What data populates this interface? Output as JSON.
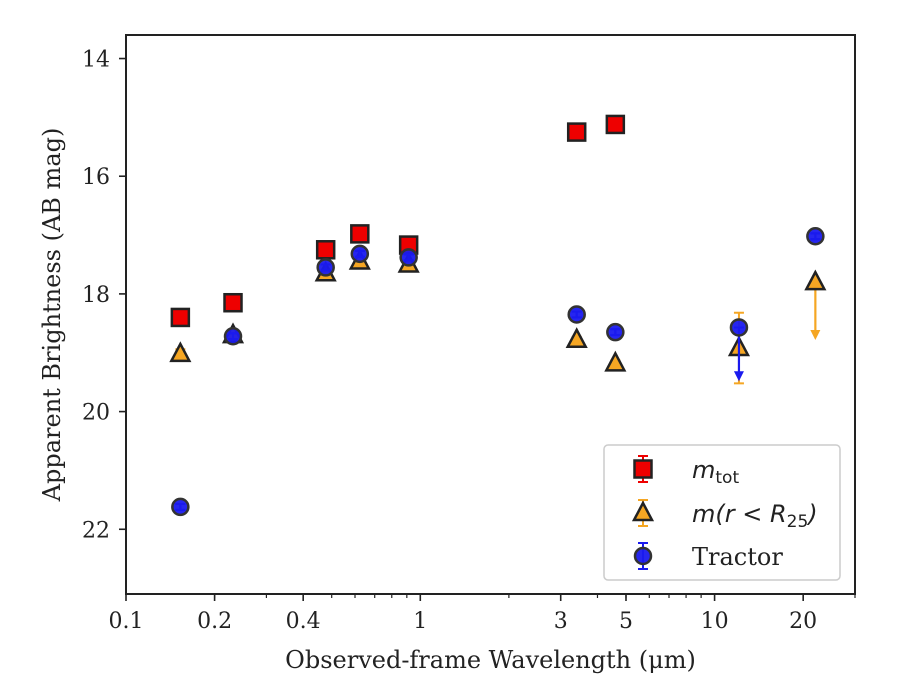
{
  "chart_data": {
    "type": "scatter",
    "xlabel": "Observed-frame Wavelength (μm)",
    "ylabel": "Apparent Brightness (AB mag)",
    "xscale": "log",
    "xlim": [
      0.1,
      30
    ],
    "ylim": [
      23.1,
      13.6
    ],
    "y_inverted": true,
    "xticks": [
      {
        "value": 0.1,
        "label": "0.1"
      },
      {
        "value": 0.2,
        "label": "0.2"
      },
      {
        "value": 0.4,
        "label": "0.4"
      },
      {
        "value": 1,
        "label": "1"
      },
      {
        "value": 3,
        "label": "3"
      },
      {
        "value": 5,
        "label": "5"
      },
      {
        "value": 10,
        "label": "10"
      },
      {
        "value": 20,
        "label": "20"
      }
    ],
    "yticks": [
      {
        "value": 14,
        "label": "14"
      },
      {
        "value": 16,
        "label": "16"
      },
      {
        "value": 18,
        "label": "18"
      },
      {
        "value": 20,
        "label": "20"
      },
      {
        "value": 22,
        "label": "22"
      }
    ],
    "grid": false,
    "legend_position": "lower-right",
    "series": [
      {
        "key": "mtot",
        "legend_main": "m",
        "legend_sub": "tot",
        "marker": "square",
        "color": "#ee0000",
        "errcolor": "#ee0000",
        "points": [
          {
            "x": 0.153,
            "y": 18.4,
            "err": 0.05
          },
          {
            "x": 0.231,
            "y": 18.15,
            "err": 0.05
          },
          {
            "x": 0.477,
            "y": 17.25,
            "err": 0.05
          },
          {
            "x": 0.623,
            "y": 16.98,
            "err": 0.05
          },
          {
            "x": 0.913,
            "y": 17.17,
            "err": 0.05
          },
          {
            "x": 3.4,
            "y": 15.25,
            "err": 0.05
          },
          {
            "x": 4.6,
            "y": 15.12,
            "err": 0.05
          }
        ]
      },
      {
        "key": "mr25",
        "legend_main": "m(r < R",
        "legend_sub": "25",
        "legend_tail": ")",
        "marker": "triangle",
        "color": "#f5a623",
        "errcolor": "#f5a623",
        "points": [
          {
            "x": 0.153,
            "y": 19.02,
            "err": 0.08
          },
          {
            "x": 0.231,
            "y": 18.7,
            "err": 0.05
          },
          {
            "x": 0.477,
            "y": 17.65,
            "err": 0.05
          },
          {
            "x": 0.623,
            "y": 17.45,
            "err": 0.05
          },
          {
            "x": 0.913,
            "y": 17.5,
            "err": 0.05
          },
          {
            "x": 3.4,
            "y": 18.78,
            "err": 0.05
          },
          {
            "x": 4.6,
            "y": 19.18,
            "err": 0.05
          },
          {
            "x": 12.1,
            "y": 18.92,
            "err": 0.6
          },
          {
            "x": 22.0,
            "y": 17.8,
            "upper_limit": true,
            "arrow_to": 18.75
          }
        ]
      },
      {
        "key": "tractor",
        "legend_main": "Tractor",
        "marker": "circle",
        "color": "#1a1aee",
        "errcolor": "#1a1aee",
        "points": [
          {
            "x": 0.153,
            "y": 21.62,
            "err": 0.05
          },
          {
            "x": 0.231,
            "y": 18.72,
            "err": 0.05
          },
          {
            "x": 0.477,
            "y": 17.55,
            "err": 0.05
          },
          {
            "x": 0.623,
            "y": 17.32,
            "err": 0.05
          },
          {
            "x": 0.913,
            "y": 17.38,
            "err": 0.05
          },
          {
            "x": 3.4,
            "y": 18.35,
            "err": 0.05
          },
          {
            "x": 4.6,
            "y": 18.65,
            "err": 0.05
          },
          {
            "x": 12.1,
            "y": 18.57,
            "upper_limit": true,
            "arrow_to": 19.45
          },
          {
            "x": 22.0,
            "y": 17.02,
            "err": 0.05
          }
        ]
      }
    ]
  }
}
